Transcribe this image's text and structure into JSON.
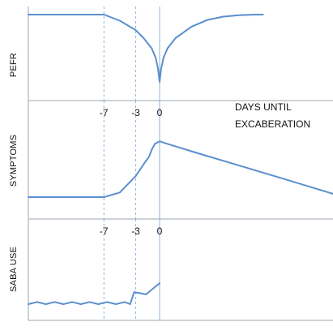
{
  "chart_data": [
    {
      "type": "line",
      "ylabel": "PEFR",
      "xlim": [
        -16.5,
        21.8
      ],
      "ylim": [
        0,
        1
      ],
      "x_ticks": [],
      "guides": [
        -7,
        -3
      ],
      "series": [
        {
          "x": [
            -16.5,
            -14,
            -12,
            -10,
            -7,
            -5,
            -3,
            -2,
            -1,
            -0.5,
            -0.2,
            0,
            0.2,
            0.5,
            1,
            2,
            4,
            6,
            8,
            10,
            12,
            13
          ],
          "y": [
            1.0,
            1.0,
            1.0,
            1.0,
            1.0,
            0.91,
            0.77,
            0.65,
            0.5,
            0.36,
            0.2,
            0.0,
            0.2,
            0.36,
            0.5,
            0.65,
            0.82,
            0.92,
            0.97,
            0.99,
            1.0,
            1.0
          ]
        }
      ],
      "color": "#5b8fcf"
    },
    {
      "type": "line",
      "ylabel": "SYMPTOMS",
      "xlim": [
        -16.5,
        21.8
      ],
      "ylim": [
        0,
        1
      ],
      "x_ticks": [
        "-7",
        "-3",
        "0"
      ],
      "annotation": "DAYS UNTIL EXCABERATION",
      "guides": [
        -7,
        -3
      ],
      "series": [
        {
          "x": [
            -16.5,
            -10,
            -7,
            -5,
            -3,
            -2,
            -1.3,
            -1,
            -0.6,
            0,
            1,
            5,
            10,
            15,
            21.8
          ],
          "y": [
            0.0,
            0.0,
            0.0,
            0.07,
            0.32,
            0.5,
            0.62,
            0.72,
            0.81,
            0.85,
            0.81,
            0.66,
            0.48,
            0.3,
            0.05
          ]
        }
      ],
      "color": "#5b8fcf"
    },
    {
      "type": "line",
      "ylabel": "SABA USE",
      "xlim": [
        -16.5,
        21.8
      ],
      "ylim": [
        0,
        1
      ],
      "x_ticks": [
        "-7",
        "-3",
        "0"
      ],
      "guides": [
        -7,
        -3
      ],
      "series": [
        {
          "x": [
            -16.5,
            -15.4,
            -14.3,
            -13.2,
            -12.1,
            -11.0,
            -9.9,
            -8.8,
            -7.7,
            -6.6,
            -5.5,
            -4.4,
            -3.7,
            -3.2,
            -1.7,
            0
          ],
          "y": [
            0.0,
            0.05,
            0.0,
            0.05,
            0.0,
            0.05,
            0.0,
            0.05,
            0.0,
            0.05,
            0.0,
            0.05,
            0.0,
            0.27,
            0.22,
            0.47
          ]
        }
      ],
      "color": "#5b8fcf"
    }
  ]
}
